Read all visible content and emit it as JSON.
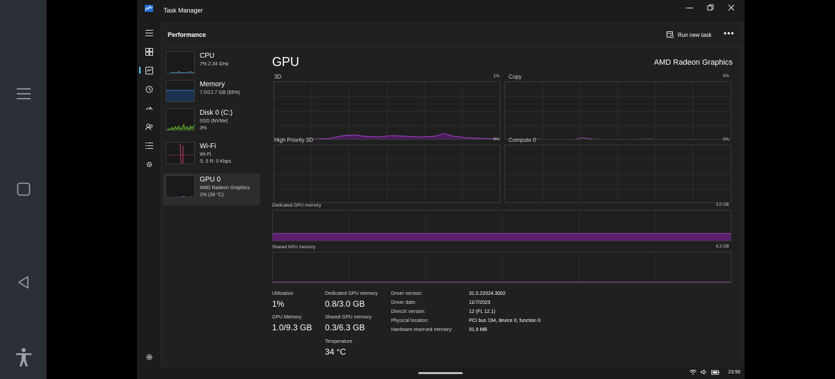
{
  "window": {
    "title": "Task Manager",
    "minimize_icon": "minimize-icon",
    "maximize_icon": "restore-icon",
    "close_icon": "close-icon"
  },
  "header": {
    "title": "Performance",
    "run_new_task": "Run new task",
    "more": "•••"
  },
  "resources": [
    {
      "name": "CPU",
      "sub1": "7% 2.34 GHz",
      "sub2": "",
      "color": "#4ca3dd"
    },
    {
      "name": "Memory",
      "sub1": "7.0/12.7 GB (55%)",
      "sub2": "",
      "color": "#4c8cdd"
    },
    {
      "name": "Disk 0 (C:)",
      "sub1": "SSD (NVMe)",
      "sub2": "3%",
      "color": "#6fbf3a"
    },
    {
      "name": "Wi-Fi",
      "sub1": "Wi-Fi",
      "sub2": "S: 0 R: 0 Kbps",
      "color": "#d8457a"
    },
    {
      "name": "GPU 0",
      "sub1": "AMD Radeon Graphics",
      "sub2": "1% (34 °C)",
      "color": "#a34cc4"
    }
  ],
  "detail": {
    "title": "GPU",
    "device": "AMD Radeon Graphics",
    "graphs": [
      {
        "label": "3D",
        "max": "1%"
      },
      {
        "label": "Copy",
        "max": "0%"
      },
      {
        "label": "High Priority 3D",
        "max": "0%"
      },
      {
        "label": "Compute 0",
        "max": "0%"
      }
    ],
    "dedicated": {
      "label": "Dedicated GPU memory",
      "max": "3.0 GB",
      "fill_fraction": 0.27
    },
    "shared": {
      "label": "Shared GPU memory",
      "max": "6.3 GB",
      "fill_fraction": 0.05
    },
    "stats": {
      "utilization_label": "Utilization",
      "utilization": "1%",
      "gpu_memory_label": "GPU Memory",
      "gpu_memory": "1.0/9.3 GB",
      "dedicated_label": "Dedicated GPU memory",
      "dedicated": "0.8/3.0 GB",
      "shared_label": "Shared GPU memory",
      "shared": "0.3/6.3 GB",
      "temperature_label": "Temperature",
      "temperature": "34 °C"
    },
    "info": [
      {
        "k": "Driver version:",
        "v": "31.0.22024.3002"
      },
      {
        "k": "Driver date:",
        "v": "11/7/2023"
      },
      {
        "k": "DirectX version:",
        "v": "12 (FL 12.1)"
      },
      {
        "k": "Physical location:",
        "v": "PCI bus 194, device 0, function 0"
      },
      {
        "k": "Hardware reserved memory:",
        "v": "91.9 MB"
      }
    ]
  },
  "taskbar": {
    "time": "23:56"
  },
  "colors": {
    "gpu_line": "#a34cc4",
    "gpu_fill": "#5b1f6e",
    "accent": "#60cdff"
  }
}
